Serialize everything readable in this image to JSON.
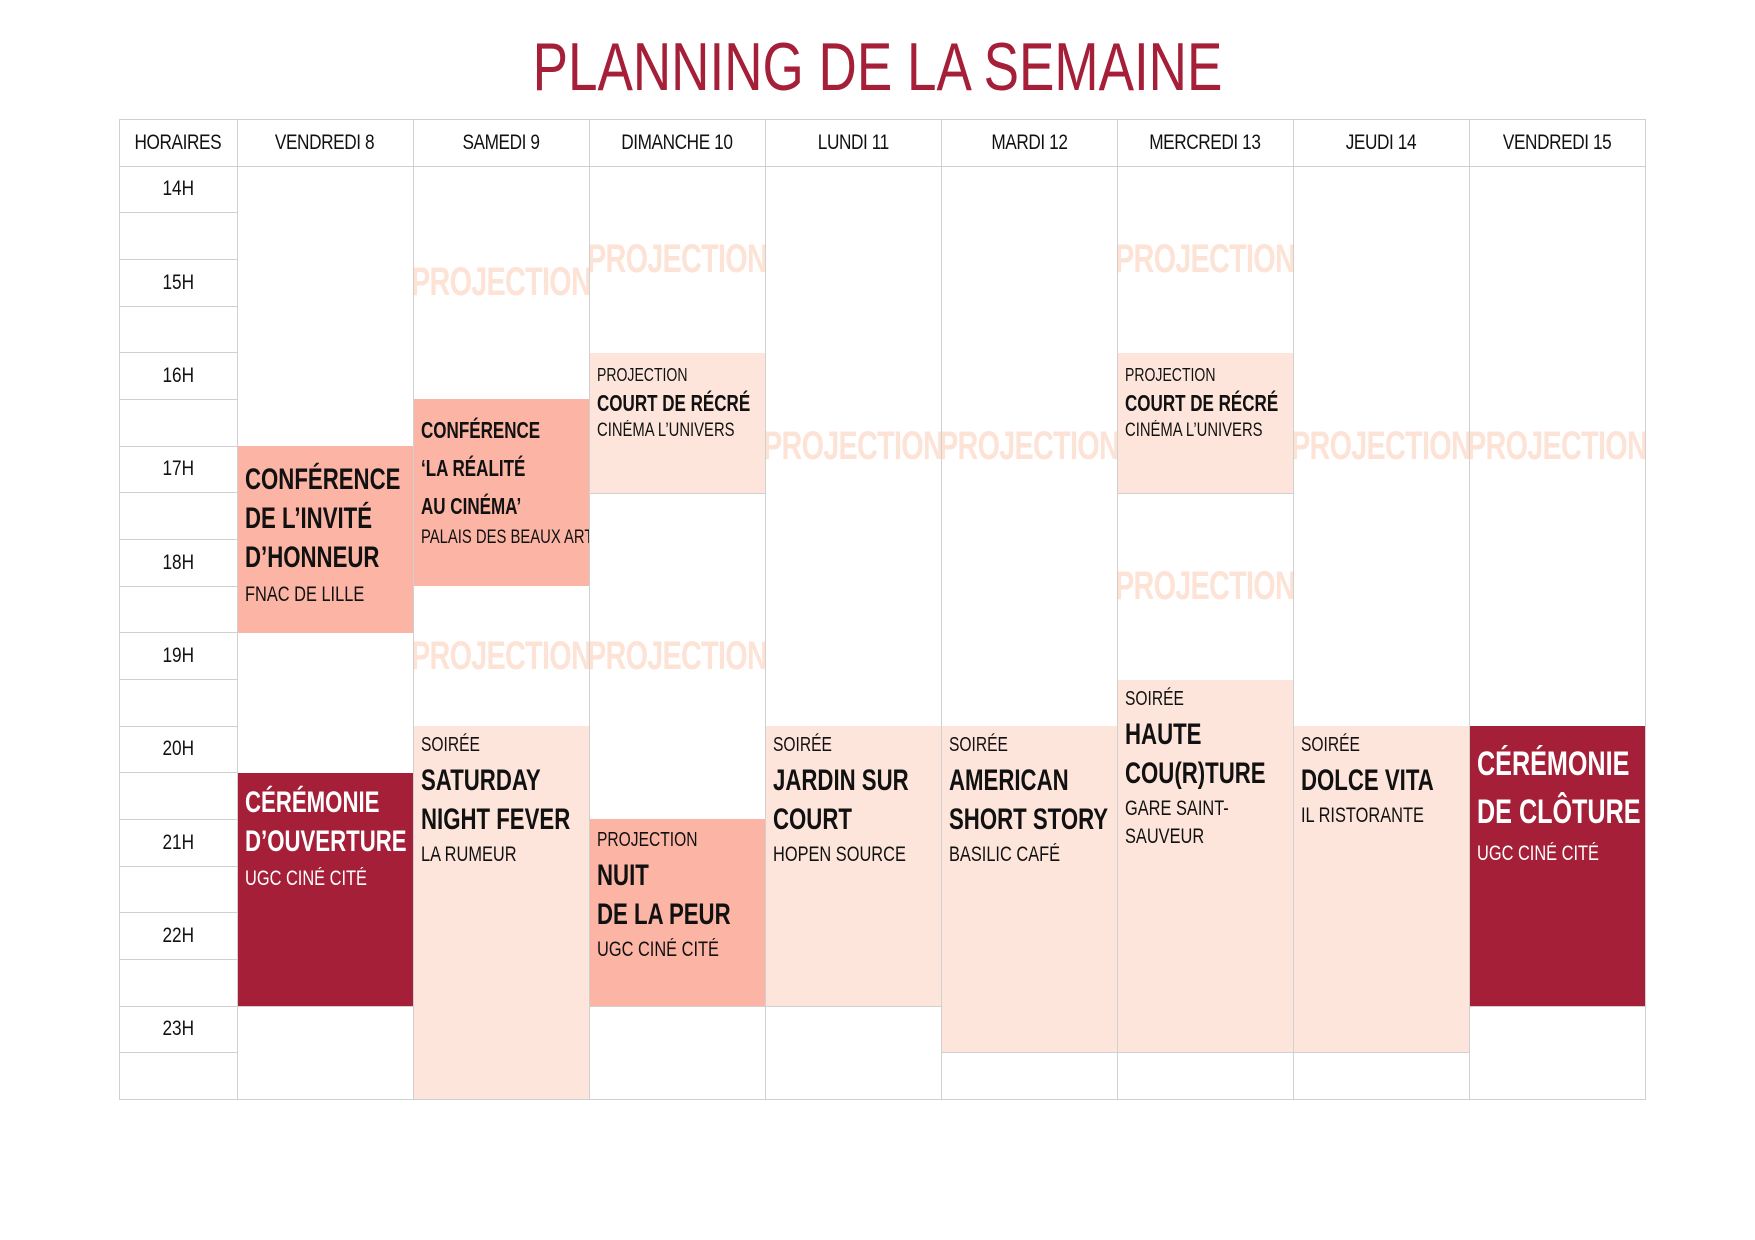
{
  "title": "PLANNING DE LA SEMAINE",
  "headers": {
    "horaires": "HORAIRES",
    "days": [
      "VENDREDI 8",
      "SAMEDI 9",
      "DIMANCHE 10",
      "LUNDI 11",
      "MARDI 12",
      "MERCREDI 13",
      "JEUDI 14",
      "VENDREDI 15"
    ]
  },
  "times": [
    "14H",
    "15H",
    "16H",
    "17H",
    "18H",
    "19H",
    "20H",
    "21H",
    "22H",
    "23H"
  ],
  "ghost_label": "PROJECTION",
  "events": {
    "fri8_conf": {
      "name1": "CONFÉRENCE",
      "name2": "DE L’INVITÉ",
      "name3": "D’HONNEUR",
      "place": "FNAC DE LILLE"
    },
    "fri8_open": {
      "name1": "CÉRÉMONIE",
      "name2": "D’OUVERTURE",
      "place": "UGC CINÉ CITÉ"
    },
    "sat9_conf": {
      "name1": "CONFÉRENCE",
      "name2": "‘LA RÉALITÉ",
      "name3": "AU CINÉMA’",
      "place": "PALAIS DES BEAUX ARTS"
    },
    "sat9_soiree": {
      "kind": "SOIRÉE",
      "name1": "SATURDAY",
      "name2": "NIGHT FEVER",
      "place": "LA RUMEUR"
    },
    "sun10_court": {
      "kind": "PROJECTION",
      "name1": "COURT DE RÉCRÉ",
      "place": "CINÉMA L’UNIVERS"
    },
    "sun10_nuit": {
      "kind": "PROJECTION",
      "name1": "NUIT",
      "name2": "DE LA PEUR",
      "place": "UGC CINÉ CITÉ"
    },
    "mon11_soiree": {
      "kind": "SOIRÉE",
      "name1": "JARDIN SUR",
      "name2": "COURT",
      "place": "HOPEN SOURCE"
    },
    "tue12_soiree": {
      "kind": "SOIRÉE",
      "name1": "AMERICAN",
      "name2": "SHORT STORY",
      "place": "BASILIC CAFÉ"
    },
    "wed13_court": {
      "kind": "PROJECTION",
      "name1": "COURT DE RÉCRÉ",
      "place": "CINÉMA L’UNIVERS"
    },
    "wed13_soiree": {
      "kind": "SOIRÉE",
      "name1": "HAUTE",
      "name2": "COU(R)TURE",
      "place1": "GARE SAINT-",
      "place2": "SAUVEUR"
    },
    "thu14_soiree": {
      "kind": "SOIRÉE",
      "name1": "DOLCE VITA",
      "place": "IL RISTORANTE"
    },
    "fri15_close": {
      "name1": "CÉRÉMONIE",
      "name2": "DE CLÔTURE",
      "place": "UGC CINÉ CITÉ"
    }
  }
}
